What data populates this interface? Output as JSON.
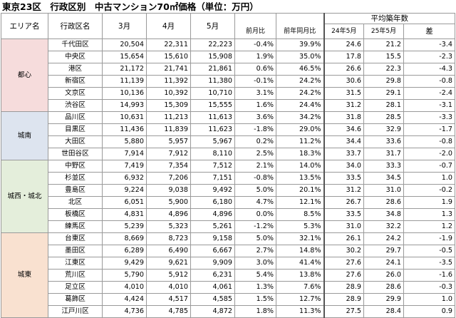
{
  "title": "東京23区　行政区別　中古マンション70㎡価格（単位：万円）",
  "headers": {
    "area": "エリア名",
    "ward": "行政区名",
    "m3": "3月",
    "m4": "4月",
    "m5": "5月",
    "mom": "前月比",
    "yoy": "前年同月比",
    "age_group": "平均築年数",
    "age24": "24年5月",
    "age25": "25年5月",
    "diff": "差"
  },
  "colors": {
    "negative": "#e0202c",
    "toshin": "#f6dcdc",
    "jonan": "#dde4ef",
    "josai": "#e4eedb",
    "joto": "#f9e1d0"
  },
  "groups": [
    {
      "area": "都心",
      "color_key": "toshin",
      "rows": [
        {
          "ward": "千代田区",
          "m3": "20,504",
          "m4": "22,311",
          "m5": "22,223",
          "mom": "-0.4%",
          "yoy": "39.9%",
          "age24": "24.6",
          "age25": "21.2",
          "diff": "-3.4"
        },
        {
          "ward": "中央区",
          "m3": "15,654",
          "m4": "15,610",
          "m5": "15,908",
          "mom": "1.9%",
          "yoy": "35.0%",
          "age24": "17.8",
          "age25": "15.5",
          "diff": "-2.3"
        },
        {
          "ward": "港区",
          "m3": "21,172",
          "m4": "21,741",
          "m5": "21,861",
          "mom": "0.6%",
          "yoy": "46.5%",
          "age24": "26.6",
          "age25": "22.3",
          "diff": "-4.3"
        },
        {
          "ward": "新宿区",
          "m3": "11,139",
          "m4": "11,392",
          "m5": "11,380",
          "mom": "-0.1%",
          "yoy": "24.2%",
          "age24": "30.6",
          "age25": "29.8",
          "diff": "-0.8"
        },
        {
          "ward": "文京区",
          "m3": "10,136",
          "m4": "10,392",
          "m5": "10,710",
          "mom": "3.1%",
          "yoy": "24.2%",
          "age24": "31.5",
          "age25": "29.1",
          "diff": "-2.4"
        },
        {
          "ward": "渋谷区",
          "m3": "14,993",
          "m4": "15,309",
          "m5": "15,555",
          "mom": "1.6%",
          "yoy": "24.4%",
          "age24": "31.2",
          "age25": "28.1",
          "diff": "-3.1"
        }
      ]
    },
    {
      "area": "城南",
      "color_key": "jonan",
      "rows": [
        {
          "ward": "品川区",
          "m3": "10,631",
          "m4": "11,213",
          "m5": "11,613",
          "mom": "3.6%",
          "yoy": "34.2%",
          "age24": "31.8",
          "age25": "28.5",
          "diff": "-3.3"
        },
        {
          "ward": "目黒区",
          "m3": "11,436",
          "m4": "11,839",
          "m5": "11,623",
          "mom": "-1.8%",
          "yoy": "29.0%",
          "age24": "34.6",
          "age25": "32.9",
          "diff": "-1.7"
        },
        {
          "ward": "大田区",
          "m3": "5,880",
          "m4": "5,957",
          "m5": "5,967",
          "mom": "0.2%",
          "yoy": "11.2%",
          "age24": "34.4",
          "age25": "33.6",
          "diff": "-0.8"
        },
        {
          "ward": "世田谷区",
          "m3": "7,914",
          "m4": "7,912",
          "m5": "8,110",
          "mom": "2.5%",
          "yoy": "18.3%",
          "age24": "33.7",
          "age25": "31.7",
          "diff": "-2.0"
        }
      ]
    },
    {
      "area": "城西・城北",
      "color_key": "josai",
      "rows": [
        {
          "ward": "中野区",
          "m3": "7,419",
          "m4": "7,354",
          "m5": "7,512",
          "mom": "2.1%",
          "yoy": "14.0%",
          "age24": "34.0",
          "age25": "33.3",
          "diff": "-0.7"
        },
        {
          "ward": "杉並区",
          "m3": "6,932",
          "m4": "7,206",
          "m5": "7,151",
          "mom": "-0.8%",
          "yoy": "13.5%",
          "age24": "33.5",
          "age25": "34.5",
          "diff": "1.0"
        },
        {
          "ward": "豊島区",
          "m3": "9,224",
          "m4": "9,038",
          "m5": "9,492",
          "mom": "5.0%",
          "yoy": "20.1%",
          "age24": "31.2",
          "age25": "31.0",
          "diff": "-0.2"
        },
        {
          "ward": "北区",
          "m3": "6,051",
          "m4": "5,900",
          "m5": "6,180",
          "mom": "4.7%",
          "yoy": "12.1%",
          "age24": "26.7",
          "age25": "28.6",
          "diff": "1.9"
        },
        {
          "ward": "板橋区",
          "m3": "4,831",
          "m4": "4,896",
          "m5": "4,896",
          "mom": "0.0%",
          "yoy": "8.5%",
          "age24": "33.5",
          "age25": "34.8",
          "diff": "1.3"
        },
        {
          "ward": "練馬区",
          "m3": "5,239",
          "m4": "5,323",
          "m5": "5,261",
          "mom": "-1.2%",
          "yoy": "5.3%",
          "age24": "31.0",
          "age25": "32.2",
          "diff": "1.2"
        }
      ]
    },
    {
      "area": "城東",
      "color_key": "joto",
      "rows": [
        {
          "ward": "台東区",
          "m3": "8,669",
          "m4": "8,723",
          "m5": "9,158",
          "mom": "5.0%",
          "yoy": "32.1%",
          "age24": "26.1",
          "age25": "24.2",
          "diff": "-1.9"
        },
        {
          "ward": "墨田区",
          "m3": "6,289",
          "m4": "6,490",
          "m5": "6,667",
          "mom": "2.7%",
          "yoy": "14.8%",
          "age24": "30.2",
          "age25": "29.7",
          "diff": "-0.5"
        },
        {
          "ward": "江東区",
          "m3": "9,429",
          "m4": "9,621",
          "m5": "9,909",
          "mom": "3.0%",
          "yoy": "41.4%",
          "age24": "27.6",
          "age25": "24.1",
          "diff": "-3.5"
        },
        {
          "ward": "荒川区",
          "m3": "5,790",
          "m4": "5,912",
          "m5": "6,231",
          "mom": "5.4%",
          "yoy": "13.8%",
          "age24": "27.6",
          "age25": "26.0",
          "diff": "-1.6"
        },
        {
          "ward": "足立区",
          "m3": "4,010",
          "m4": "4,010",
          "m5": "4,061",
          "mom": "1.3%",
          "yoy": "7.6%",
          "age24": "28.9",
          "age25": "28.6",
          "diff": "-0.3"
        },
        {
          "ward": "葛飾区",
          "m3": "4,424",
          "m4": "4,517",
          "m5": "4,585",
          "mom": "1.5%",
          "yoy": "12.7%",
          "age24": "28.9",
          "age25": "29.9",
          "diff": "1.0"
        },
        {
          "ward": "江戸川区",
          "m3": "4,736",
          "m4": "4,785",
          "m5": "4,872",
          "mom": "1.8%",
          "yoy": "11.3%",
          "age24": "27.5",
          "age25": "28.4",
          "diff": "0.9"
        }
      ]
    }
  ]
}
